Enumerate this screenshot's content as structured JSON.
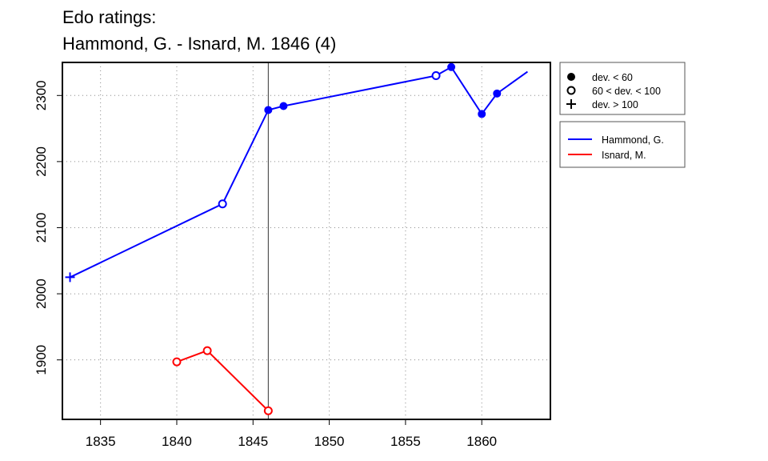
{
  "chart_data": {
    "type": "line",
    "title": "Edo ratings:",
    "subtitle": "Hammond, G. - Isnard, M. 1846 (4)",
    "xlabel": "",
    "ylabel": "",
    "xlim": [
      1832.5,
      1864.5
    ],
    "ylim": [
      1810,
      2350
    ],
    "xticks": [
      1835,
      1840,
      1845,
      1850,
      1855,
      1860
    ],
    "yticks": [
      1900,
      2000,
      2100,
      2200,
      2300
    ],
    "grid": true,
    "vline_x": 1846,
    "series": [
      {
        "name": "Hammond, G.",
        "color": "#0000ff",
        "points": [
          {
            "x": 1833,
            "y": 2025,
            "marker": "plus"
          },
          {
            "x": 1843,
            "y": 2136,
            "marker": "open"
          },
          {
            "x": 1846,
            "y": 2278,
            "marker": "filled"
          },
          {
            "x": 1847,
            "y": 2284,
            "marker": "filled"
          },
          {
            "x": 1857,
            "y": 2330,
            "marker": "open"
          },
          {
            "x": 1858,
            "y": 2343,
            "marker": "filled"
          },
          {
            "x": 1860,
            "y": 2272,
            "marker": "filled"
          },
          {
            "x": 1861,
            "y": 2303,
            "marker": "filled"
          },
          {
            "x": 1863,
            "y": 2336,
            "marker": "none"
          }
        ]
      },
      {
        "name": "Isnard, M.",
        "color": "#ff0000",
        "points": [
          {
            "x": 1840,
            "y": 1897,
            "marker": "open"
          },
          {
            "x": 1842,
            "y": 1914,
            "marker": "open"
          },
          {
            "x": 1846,
            "y": 1823,
            "marker": "open"
          }
        ]
      }
    ],
    "legend_markers": [
      {
        "symbol": "filled",
        "label": "dev. < 60"
      },
      {
        "symbol": "open",
        "label": "60 < dev. < 100"
      },
      {
        "symbol": "plus",
        "label": "dev. > 100"
      }
    ],
    "legend_position": "right"
  }
}
